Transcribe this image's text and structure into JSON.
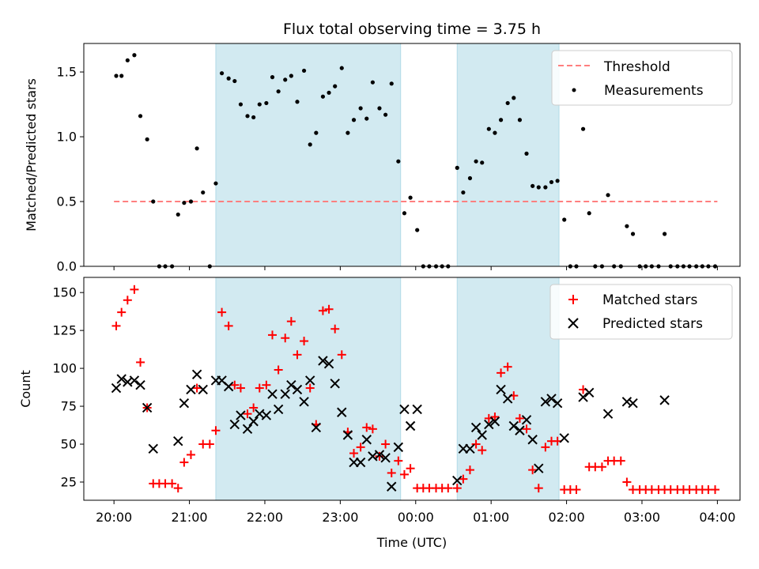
{
  "chart_data": [
    {
      "type": "scatter",
      "title": "Flux total observing time = 3.75 h",
      "xlabel": "",
      "ylabel": "Matched/Predicted stars",
      "xlim": [
        -0.4,
        8.3
      ],
      "ylim": [
        0,
        1.72
      ],
      "yticks": [
        "0.0",
        "0.5",
        "1.0",
        "1.5"
      ],
      "grid": false,
      "legend": "top-right",
      "shaded_intervals": [
        [
          1.35,
          3.8
        ],
        [
          4.55,
          5.9
        ]
      ],
      "shade_color": "#add8e6",
      "threshold": {
        "name": "Threshold",
        "value": 0.5,
        "x_range": [
          0,
          8
        ],
        "color": "#ff7f7f"
      },
      "series": [
        {
          "name": "Measurements",
          "color": "#000000",
          "marker": "dot",
          "points": [
            [
              0.03,
              1.47
            ],
            [
              0.1,
              1.47
            ],
            [
              0.18,
              1.59
            ],
            [
              0.27,
              1.63
            ],
            [
              0.35,
              1.16
            ],
            [
              0.44,
              0.98
            ],
            [
              0.52,
              0.5
            ],
            [
              0.6,
              0
            ],
            [
              0.68,
              0
            ],
            [
              0.77,
              0
            ],
            [
              0.85,
              0.4
            ],
            [
              0.93,
              0.49
            ],
            [
              1.02,
              0.5
            ],
            [
              1.1,
              0.91
            ],
            [
              1.18,
              0.57
            ],
            [
              1.27,
              0
            ],
            [
              1.35,
              0.64
            ],
            [
              1.43,
              1.49
            ],
            [
              1.52,
              1.45
            ],
            [
              1.6,
              1.43
            ],
            [
              1.68,
              1.25
            ],
            [
              1.77,
              1.16
            ],
            [
              1.85,
              1.15
            ],
            [
              1.93,
              1.25
            ],
            [
              2.02,
              1.26
            ],
            [
              2.1,
              1.46
            ],
            [
              2.18,
              1.35
            ],
            [
              2.27,
              1.44
            ],
            [
              2.35,
              1.47
            ],
            [
              2.43,
              1.27
            ],
            [
              2.52,
              1.51
            ],
            [
              2.6,
              0.94
            ],
            [
              2.68,
              1.03
            ],
            [
              2.77,
              1.31
            ],
            [
              2.85,
              1.34
            ],
            [
              2.93,
              1.39
            ],
            [
              3.02,
              1.53
            ],
            [
              3.1,
              1.03
            ],
            [
              3.18,
              1.13
            ],
            [
              3.27,
              1.22
            ],
            [
              3.35,
              1.14
            ],
            [
              3.43,
              1.42
            ],
            [
              3.52,
              1.22
            ],
            [
              3.6,
              1.17
            ],
            [
              3.68,
              1.41
            ],
            [
              3.77,
              0.81
            ],
            [
              3.85,
              0.41
            ],
            [
              3.93,
              0.53
            ],
            [
              4.02,
              0.28
            ],
            [
              4.1,
              0
            ],
            [
              4.18,
              0
            ],
            [
              4.27,
              0
            ],
            [
              4.35,
              0
            ],
            [
              4.43,
              0
            ],
            [
              4.55,
              0.76
            ],
            [
              4.63,
              0.57
            ],
            [
              4.72,
              0.68
            ],
            [
              4.8,
              0.81
            ],
            [
              4.88,
              0.8
            ],
            [
              4.97,
              1.06
            ],
            [
              5.05,
              1.03
            ],
            [
              5.13,
              1.13
            ],
            [
              5.22,
              1.26
            ],
            [
              5.3,
              1.3
            ],
            [
              5.38,
              1.13
            ],
            [
              5.47,
              0.87
            ],
            [
              5.55,
              0.62
            ],
            [
              5.63,
              0.61
            ],
            [
              5.72,
              0.61
            ],
            [
              5.8,
              0.65
            ],
            [
              5.88,
              0.66
            ],
            [
              5.97,
              0.36
            ],
            [
              6.05,
              0
            ],
            [
              6.13,
              0
            ],
            [
              6.22,
              1.06
            ],
            [
              6.3,
              0.41
            ],
            [
              6.38,
              0
            ],
            [
              6.47,
              0
            ],
            [
              6.55,
              0.55
            ],
            [
              6.63,
              0
            ],
            [
              6.72,
              0
            ],
            [
              6.8,
              0.31
            ],
            [
              6.88,
              0.25
            ],
            [
              6.97,
              0
            ],
            [
              7.05,
              0
            ],
            [
              7.13,
              0
            ],
            [
              7.22,
              0
            ],
            [
              7.3,
              0.25
            ],
            [
              7.38,
              0
            ],
            [
              7.47,
              0
            ],
            [
              7.55,
              0
            ],
            [
              7.63,
              0
            ],
            [
              7.72,
              0
            ],
            [
              7.8,
              0
            ],
            [
              7.88,
              0
            ],
            [
              7.97,
              0
            ]
          ]
        }
      ]
    },
    {
      "type": "scatter",
      "title": "",
      "xlabel": "Time (UTC)",
      "ylabel": "Count",
      "xlim": [
        -0.4,
        8.3
      ],
      "ylim": [
        13,
        160
      ],
      "yticks": [
        "25",
        "50",
        "75",
        "100",
        "125",
        "150"
      ],
      "xticks": [
        "20:00",
        "21:00",
        "22:00",
        "23:00",
        "00:00",
        "01:00",
        "02:00",
        "03:00",
        "04:00"
      ],
      "grid": false,
      "legend": "top-right",
      "shaded_intervals": [
        [
          1.35,
          3.8
        ],
        [
          4.55,
          5.9
        ]
      ],
      "shade_color": "#add8e6",
      "series": [
        {
          "name": "Matched stars",
          "color": "#ff0000",
          "marker": "plus",
          "points": [
            [
              0.03,
              128
            ],
            [
              0.1,
              137
            ],
            [
              0.18,
              145
            ],
            [
              0.27,
              152
            ],
            [
              0.35,
              104
            ],
            [
              0.44,
              74
            ],
            [
              0.52,
              24
            ],
            [
              0.6,
              24
            ],
            [
              0.68,
              24
            ],
            [
              0.77,
              24
            ],
            [
              0.85,
              21
            ],
            [
              0.93,
              38
            ],
            [
              1.02,
              43
            ],
            [
              1.1,
              87
            ],
            [
              1.18,
              50
            ],
            [
              1.27,
              50
            ],
            [
              1.35,
              59
            ],
            [
              1.43,
              137
            ],
            [
              1.52,
              128
            ],
            [
              1.6,
              89
            ],
            [
              1.68,
              87
            ],
            [
              1.77,
              70
            ],
            [
              1.85,
              74
            ],
            [
              1.93,
              87
            ],
            [
              2.02,
              89
            ],
            [
              2.1,
              122
            ],
            [
              2.18,
              99
            ],
            [
              2.27,
              120
            ],
            [
              2.35,
              131
            ],
            [
              2.43,
              109
            ],
            [
              2.52,
              118
            ],
            [
              2.6,
              87
            ],
            [
              2.68,
              63
            ],
            [
              2.77,
              138
            ],
            [
              2.85,
              139
            ],
            [
              2.93,
              126
            ],
            [
              3.02,
              109
            ],
            [
              3.1,
              58
            ],
            [
              3.18,
              44
            ],
            [
              3.27,
              48
            ],
            [
              3.35,
              61
            ],
            [
              3.43,
              60
            ],
            [
              3.52,
              42
            ],
            [
              3.6,
              50
            ],
            [
              3.68,
              31
            ],
            [
              3.77,
              39
            ],
            [
              3.85,
              30
            ],
            [
              3.93,
              34
            ],
            [
              4.02,
              21
            ],
            [
              4.1,
              21
            ],
            [
              4.18,
              21
            ],
            [
              4.27,
              21
            ],
            [
              4.35,
              21
            ],
            [
              4.43,
              21
            ],
            [
              4.55,
              21
            ],
            [
              4.63,
              27
            ],
            [
              4.72,
              33
            ],
            [
              4.8,
              50
            ],
            [
              4.88,
              46
            ],
            [
              4.97,
              67
            ],
            [
              5.05,
              68
            ],
            [
              5.13,
              97
            ],
            [
              5.22,
              101
            ],
            [
              5.3,
              82
            ],
            [
              5.38,
              67
            ],
            [
              5.47,
              60
            ],
            [
              5.55,
              33
            ],
            [
              5.63,
              21
            ],
            [
              5.72,
              48
            ],
            [
              5.8,
              52
            ],
            [
              5.88,
              52
            ],
            [
              5.97,
              20
            ],
            [
              6.05,
              20
            ],
            [
              6.13,
              20
            ],
            [
              6.22,
              86
            ],
            [
              6.3,
              35
            ],
            [
              6.38,
              35
            ],
            [
              6.47,
              35
            ],
            [
              6.55,
              39
            ],
            [
              6.63,
              39
            ],
            [
              6.72,
              39
            ],
            [
              6.8,
              25
            ],
            [
              6.88,
              20
            ],
            [
              6.97,
              20
            ],
            [
              7.05,
              20
            ],
            [
              7.13,
              20
            ],
            [
              7.22,
              20
            ],
            [
              7.3,
              20
            ],
            [
              7.38,
              20
            ],
            [
              7.47,
              20
            ],
            [
              7.55,
              20
            ],
            [
              7.63,
              20
            ],
            [
              7.72,
              20
            ],
            [
              7.8,
              20
            ],
            [
              7.88,
              20
            ],
            [
              7.97,
              20
            ]
          ]
        },
        {
          "name": "Predicted stars",
          "color": "#000000",
          "marker": "x",
          "points": [
            [
              0.03,
              87
            ],
            [
              0.1,
              93
            ],
            [
              0.18,
              91
            ],
            [
              0.27,
              92
            ],
            [
              0.35,
              89
            ],
            [
              0.44,
              74
            ],
            [
              0.52,
              47
            ],
            [
              0.85,
              52
            ],
            [
              0.93,
              77
            ],
            [
              1.02,
              86
            ],
            [
              1.1,
              96
            ],
            [
              1.18,
              86
            ],
            [
              1.35,
              92
            ],
            [
              1.43,
              92
            ],
            [
              1.52,
              88
            ],
            [
              1.6,
              63
            ],
            [
              1.68,
              69
            ],
            [
              1.77,
              60
            ],
            [
              1.85,
              65
            ],
            [
              1.93,
              70
            ],
            [
              2.02,
              69
            ],
            [
              2.1,
              83
            ],
            [
              2.18,
              73
            ],
            [
              2.27,
              83
            ],
            [
              2.35,
              89
            ],
            [
              2.43,
              86
            ],
            [
              2.52,
              78
            ],
            [
              2.6,
              92
            ],
            [
              2.68,
              61
            ],
            [
              2.77,
              105
            ],
            [
              2.85,
              103
            ],
            [
              2.93,
              90
            ],
            [
              3.02,
              71
            ],
            [
              3.1,
              56
            ],
            [
              3.18,
              38
            ],
            [
              3.27,
              38
            ],
            [
              3.35,
              53
            ],
            [
              3.43,
              42
            ],
            [
              3.52,
              43
            ],
            [
              3.6,
              41
            ],
            [
              3.68,
              22
            ],
            [
              3.77,
              48
            ],
            [
              3.85,
              73
            ],
            [
              3.93,
              62
            ],
            [
              4.02,
              73
            ],
            [
              4.55,
              26
            ],
            [
              4.63,
              47
            ],
            [
              4.72,
              47
            ],
            [
              4.8,
              61
            ],
            [
              4.88,
              56
            ],
            [
              4.97,
              63
            ],
            [
              5.05,
              65
            ],
            [
              5.13,
              86
            ],
            [
              5.22,
              80
            ],
            [
              5.3,
              62
            ],
            [
              5.38,
              59
            ],
            [
              5.47,
              66
            ],
            [
              5.55,
              53
            ],
            [
              5.63,
              34
            ],
            [
              5.72,
              78
            ],
            [
              5.8,
              80
            ],
            [
              5.88,
              77
            ],
            [
              5.97,
              54
            ],
            [
              6.22,
              81
            ],
            [
              6.3,
              84
            ],
            [
              6.55,
              70
            ],
            [
              6.8,
              78
            ],
            [
              6.88,
              77
            ],
            [
              7.3,
              79
            ]
          ]
        }
      ]
    }
  ]
}
